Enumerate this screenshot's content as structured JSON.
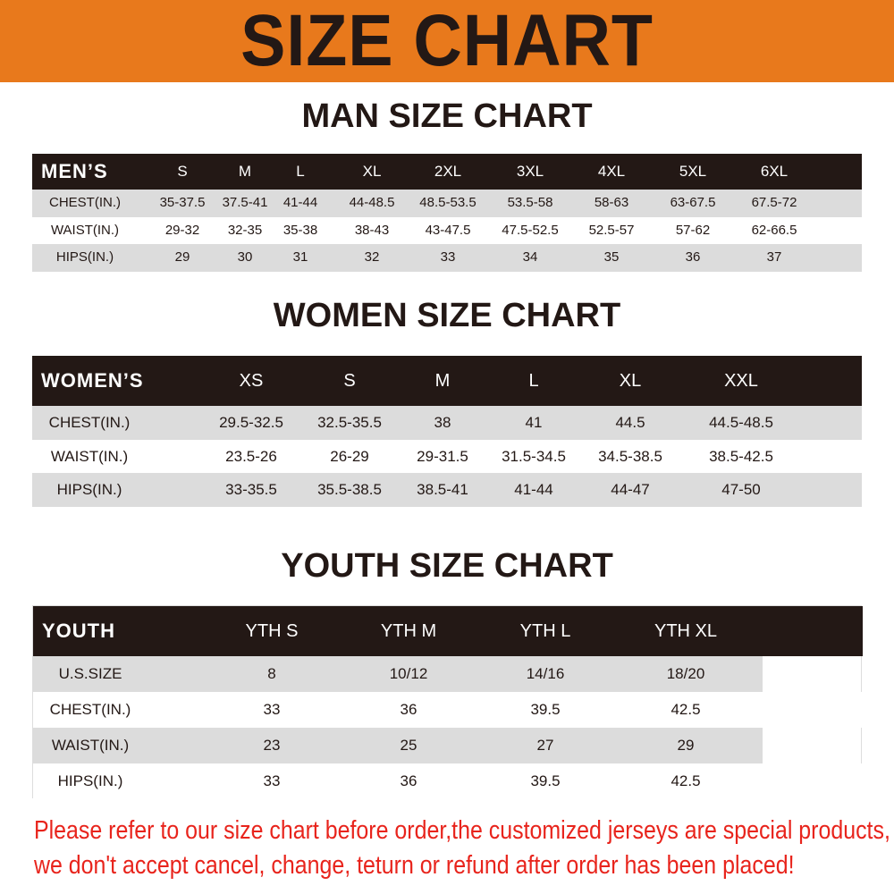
{
  "banner": {
    "title": "SIZE CHART",
    "color": "#e8791c"
  },
  "men": {
    "title": "MAN SIZE CHART",
    "header": "MEN’S",
    "sizes": [
      "S",
      "M",
      "L",
      "XL",
      "2XL",
      "3XL",
      "4XL",
      "5XL",
      "6XL"
    ],
    "rows": [
      {
        "label": "CHEST(IN.)",
        "values": [
          "35-37.5",
          "37.5-41",
          "41-44",
          "44-48.5",
          "48.5-53.5",
          "53.5-58",
          "58-63",
          "63-67.5",
          "67.5-72"
        ]
      },
      {
        "label": "WAIST(IN.)",
        "values": [
          "29-32",
          "32-35",
          "35-38",
          "38-43",
          "43-47.5",
          "47.5-52.5",
          "52.5-57",
          "57-62",
          "62-66.5"
        ]
      },
      {
        "label": "HIPS(IN.)",
        "values": [
          "29",
          "30",
          "31",
          "32",
          "33",
          "34",
          "35",
          "36",
          "37"
        ]
      }
    ]
  },
  "women": {
    "title": "WOMEN SIZE CHART",
    "header": "WOMEN’S",
    "sizes": [
      "XS",
      "S",
      "M",
      "L",
      "XL",
      "XXL"
    ],
    "rows": [
      {
        "label": "CHEST(IN.)",
        "values": [
          "29.5-32.5",
          "32.5-35.5",
          "38",
          "41",
          "44.5",
          "44.5-48.5"
        ]
      },
      {
        "label": "WAIST(IN.)",
        "values": [
          "23.5-26",
          "26-29",
          "29-31.5",
          "31.5-34.5",
          "34.5-38.5",
          "38.5-42.5"
        ]
      },
      {
        "label": "HIPS(IN.)",
        "values": [
          "33-35.5",
          "35.5-38.5",
          "38.5-41",
          "41-44",
          "44-47",
          "47-50"
        ]
      }
    ]
  },
  "youth": {
    "title": "YOUTH SIZE CHART",
    "header": "YOUTH",
    "sizes": [
      "YTH S",
      "YTH M",
      "YTH L",
      "YTH XL"
    ],
    "rows": [
      {
        "label": "U.S.SIZE",
        "values": [
          "8",
          "10/12",
          "14/16",
          "18/20"
        ]
      },
      {
        "label": "CHEST(IN.)",
        "values": [
          "33",
          "36",
          "39.5",
          "42.5"
        ]
      },
      {
        "label": "WAIST(IN.)",
        "values": [
          "23",
          "25",
          "27",
          "29"
        ]
      },
      {
        "label": "HIPS(IN.)",
        "values": [
          "33",
          "36",
          "39.5",
          "42.5"
        ]
      }
    ]
  },
  "notice": {
    "line1": "Please refer to our size chart before order,the customized jerseys are special products,",
    "line2": "we don't accept cancel, change, teturn or refund after order has been placed!",
    "color": "#e8241c"
  }
}
